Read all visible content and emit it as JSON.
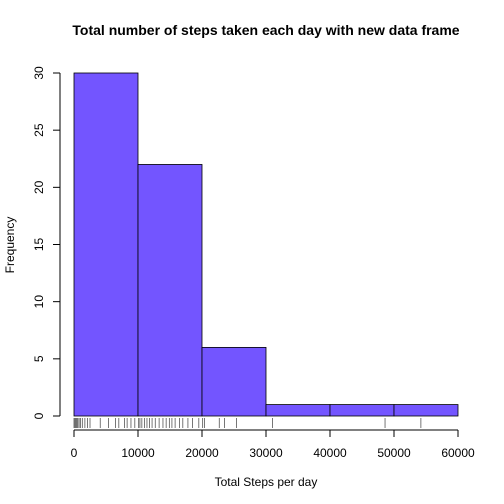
{
  "chart_data": {
    "type": "bar",
    "title": "Total number of steps taken each day with new data frame",
    "xlabel": "Total Steps per day",
    "ylabel": "Frequency",
    "bins": [
      {
        "start": 0,
        "end": 10000,
        "count": 30
      },
      {
        "start": 10000,
        "end": 20000,
        "count": 22
      },
      {
        "start": 20000,
        "end": 30000,
        "count": 6
      },
      {
        "start": 30000,
        "end": 40000,
        "count": 1
      },
      {
        "start": 40000,
        "end": 50000,
        "count": 1
      },
      {
        "start": 50000,
        "end": 60000,
        "count": 1
      }
    ],
    "xlim": [
      0,
      60000
    ],
    "ylim": [
      0,
      30
    ],
    "x_ticks": [
      "0",
      "10000",
      "20000",
      "30000",
      "40000",
      "50000",
      "60000"
    ],
    "y_ticks": [
      "0",
      "5",
      "10",
      "15",
      "20",
      "25",
      "30"
    ],
    "bar_color": "#7355ff",
    "grid": false,
    "rug": [
      0,
      150,
      300,
      450,
      600,
      800,
      1000,
      1300,
      1700,
      2100,
      2500,
      4100,
      5400,
      6500,
      7000,
      7900,
      8300,
      8900,
      9500,
      10100,
      10300,
      10600,
      11000,
      11400,
      11800,
      12200,
      12700,
      13300,
      13900,
      14400,
      14900,
      15300,
      15800,
      16500,
      17000,
      17800,
      18500,
      19500,
      20100,
      20400,
      22700,
      23500,
      25400,
      31000,
      48600,
      54200
    ]
  }
}
